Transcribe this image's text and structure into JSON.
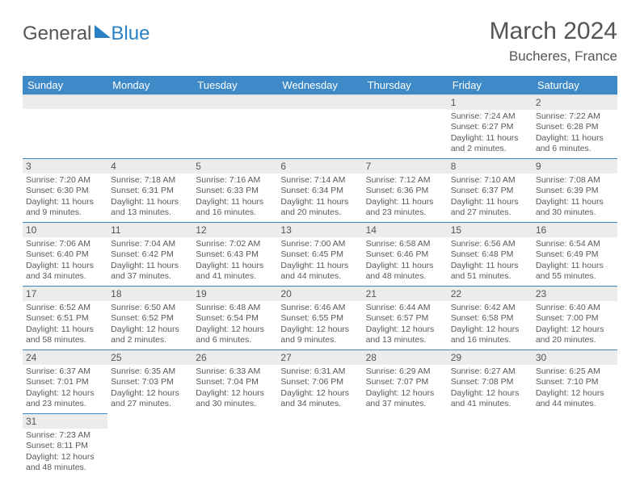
{
  "brand": {
    "part1": "General",
    "part2": "Blue"
  },
  "title": "March 2024",
  "location": "Bucheres, France",
  "colors": {
    "header_bg": "#3e8ac8",
    "header_text": "#ffffff",
    "daynum_bg": "#ececec",
    "divider": "#3e8ac8",
    "text": "#4a4a4a",
    "brand_blue": "#2a82c4"
  },
  "weekdays": [
    "Sunday",
    "Monday",
    "Tuesday",
    "Wednesday",
    "Thursday",
    "Friday",
    "Saturday"
  ],
  "weeks": [
    [
      null,
      null,
      null,
      null,
      null,
      {
        "n": "1",
        "sunrise": "Sunrise: 7:24 AM",
        "sunset": "Sunset: 6:27 PM",
        "daylight": "Daylight: 11 hours and 2 minutes."
      },
      {
        "n": "2",
        "sunrise": "Sunrise: 7:22 AM",
        "sunset": "Sunset: 6:28 PM",
        "daylight": "Daylight: 11 hours and 6 minutes."
      }
    ],
    [
      {
        "n": "3",
        "sunrise": "Sunrise: 7:20 AM",
        "sunset": "Sunset: 6:30 PM",
        "daylight": "Daylight: 11 hours and 9 minutes."
      },
      {
        "n": "4",
        "sunrise": "Sunrise: 7:18 AM",
        "sunset": "Sunset: 6:31 PM",
        "daylight": "Daylight: 11 hours and 13 minutes."
      },
      {
        "n": "5",
        "sunrise": "Sunrise: 7:16 AM",
        "sunset": "Sunset: 6:33 PM",
        "daylight": "Daylight: 11 hours and 16 minutes."
      },
      {
        "n": "6",
        "sunrise": "Sunrise: 7:14 AM",
        "sunset": "Sunset: 6:34 PM",
        "daylight": "Daylight: 11 hours and 20 minutes."
      },
      {
        "n": "7",
        "sunrise": "Sunrise: 7:12 AM",
        "sunset": "Sunset: 6:36 PM",
        "daylight": "Daylight: 11 hours and 23 minutes."
      },
      {
        "n": "8",
        "sunrise": "Sunrise: 7:10 AM",
        "sunset": "Sunset: 6:37 PM",
        "daylight": "Daylight: 11 hours and 27 minutes."
      },
      {
        "n": "9",
        "sunrise": "Sunrise: 7:08 AM",
        "sunset": "Sunset: 6:39 PM",
        "daylight": "Daylight: 11 hours and 30 minutes."
      }
    ],
    [
      {
        "n": "10",
        "sunrise": "Sunrise: 7:06 AM",
        "sunset": "Sunset: 6:40 PM",
        "daylight": "Daylight: 11 hours and 34 minutes."
      },
      {
        "n": "11",
        "sunrise": "Sunrise: 7:04 AM",
        "sunset": "Sunset: 6:42 PM",
        "daylight": "Daylight: 11 hours and 37 minutes."
      },
      {
        "n": "12",
        "sunrise": "Sunrise: 7:02 AM",
        "sunset": "Sunset: 6:43 PM",
        "daylight": "Daylight: 11 hours and 41 minutes."
      },
      {
        "n": "13",
        "sunrise": "Sunrise: 7:00 AM",
        "sunset": "Sunset: 6:45 PM",
        "daylight": "Daylight: 11 hours and 44 minutes."
      },
      {
        "n": "14",
        "sunrise": "Sunrise: 6:58 AM",
        "sunset": "Sunset: 6:46 PM",
        "daylight": "Daylight: 11 hours and 48 minutes."
      },
      {
        "n": "15",
        "sunrise": "Sunrise: 6:56 AM",
        "sunset": "Sunset: 6:48 PM",
        "daylight": "Daylight: 11 hours and 51 minutes."
      },
      {
        "n": "16",
        "sunrise": "Sunrise: 6:54 AM",
        "sunset": "Sunset: 6:49 PM",
        "daylight": "Daylight: 11 hours and 55 minutes."
      }
    ],
    [
      {
        "n": "17",
        "sunrise": "Sunrise: 6:52 AM",
        "sunset": "Sunset: 6:51 PM",
        "daylight": "Daylight: 11 hours and 58 minutes."
      },
      {
        "n": "18",
        "sunrise": "Sunrise: 6:50 AM",
        "sunset": "Sunset: 6:52 PM",
        "daylight": "Daylight: 12 hours and 2 minutes."
      },
      {
        "n": "19",
        "sunrise": "Sunrise: 6:48 AM",
        "sunset": "Sunset: 6:54 PM",
        "daylight": "Daylight: 12 hours and 6 minutes."
      },
      {
        "n": "20",
        "sunrise": "Sunrise: 6:46 AM",
        "sunset": "Sunset: 6:55 PM",
        "daylight": "Daylight: 12 hours and 9 minutes."
      },
      {
        "n": "21",
        "sunrise": "Sunrise: 6:44 AM",
        "sunset": "Sunset: 6:57 PM",
        "daylight": "Daylight: 12 hours and 13 minutes."
      },
      {
        "n": "22",
        "sunrise": "Sunrise: 6:42 AM",
        "sunset": "Sunset: 6:58 PM",
        "daylight": "Daylight: 12 hours and 16 minutes."
      },
      {
        "n": "23",
        "sunrise": "Sunrise: 6:40 AM",
        "sunset": "Sunset: 7:00 PM",
        "daylight": "Daylight: 12 hours and 20 minutes."
      }
    ],
    [
      {
        "n": "24",
        "sunrise": "Sunrise: 6:37 AM",
        "sunset": "Sunset: 7:01 PM",
        "daylight": "Daylight: 12 hours and 23 minutes."
      },
      {
        "n": "25",
        "sunrise": "Sunrise: 6:35 AM",
        "sunset": "Sunset: 7:03 PM",
        "daylight": "Daylight: 12 hours and 27 minutes."
      },
      {
        "n": "26",
        "sunrise": "Sunrise: 6:33 AM",
        "sunset": "Sunset: 7:04 PM",
        "daylight": "Daylight: 12 hours and 30 minutes."
      },
      {
        "n": "27",
        "sunrise": "Sunrise: 6:31 AM",
        "sunset": "Sunset: 7:06 PM",
        "daylight": "Daylight: 12 hours and 34 minutes."
      },
      {
        "n": "28",
        "sunrise": "Sunrise: 6:29 AM",
        "sunset": "Sunset: 7:07 PM",
        "daylight": "Daylight: 12 hours and 37 minutes."
      },
      {
        "n": "29",
        "sunrise": "Sunrise: 6:27 AM",
        "sunset": "Sunset: 7:08 PM",
        "daylight": "Daylight: 12 hours and 41 minutes."
      },
      {
        "n": "30",
        "sunrise": "Sunrise: 6:25 AM",
        "sunset": "Sunset: 7:10 PM",
        "daylight": "Daylight: 12 hours and 44 minutes."
      }
    ],
    [
      {
        "n": "31",
        "sunrise": "Sunrise: 7:23 AM",
        "sunset": "Sunset: 8:11 PM",
        "daylight": "Daylight: 12 hours and 48 minutes."
      },
      null,
      null,
      null,
      null,
      null,
      null
    ]
  ]
}
